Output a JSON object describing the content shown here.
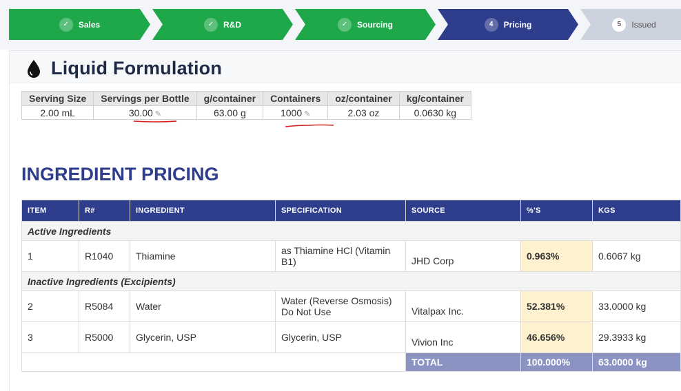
{
  "stepper": {
    "steps": [
      {
        "label": "Sales",
        "state": "done",
        "marker": "✓"
      },
      {
        "label": "R&D",
        "state": "done",
        "marker": "✓"
      },
      {
        "label": "Sourcing",
        "state": "done",
        "marker": "✓"
      },
      {
        "label": "Pricing",
        "state": "current",
        "marker": "4"
      },
      {
        "label": "Issued",
        "state": "todo",
        "marker": "5"
      }
    ],
    "colors": {
      "done": "#1ea84a",
      "current": "#2e3d8c",
      "todo": "#cdd3de"
    }
  },
  "formulation": {
    "title": "Liquid Formulation",
    "icon": "water-drop-icon",
    "summary": {
      "headers": [
        "Serving Size",
        "Servings per Bottle",
        "g/container",
        "Containers",
        "oz/container",
        "kg/container"
      ],
      "values": [
        "2.00 mL",
        "30.00",
        "63.00 g",
        "1000",
        "2.03 oz",
        "0.0630 kg"
      ]
    }
  },
  "pricing": {
    "title": "INGREDIENT PRICING",
    "headers": [
      "ITEM",
      "R#",
      "INGREDIENT",
      "SPECIFICATION",
      "SOURCE",
      "%'S",
      "KGS"
    ],
    "groups": [
      {
        "label": "Active Ingredients",
        "rows": [
          {
            "item": "1",
            "r": "R1040",
            "ingredient": "Thiamine",
            "spec": "as Thiamine HCl (Vitamin B1)",
            "source": "JHD Corp",
            "pct": "0.963%",
            "kgs": "0.6067 kg"
          }
        ]
      },
      {
        "label": "Inactive Ingredients (Excipients)",
        "rows": [
          {
            "item": "2",
            "r": "R5084",
            "ingredient": "Water",
            "spec": "Water (Reverse Osmosis) Do Not Use",
            "source": "Vitalpax Inc.",
            "pct": "52.381%",
            "kgs": "33.0000 kg"
          },
          {
            "item": "3",
            "r": "R5000",
            "ingredient": "Glycerin, USP",
            "spec": "Glycerin, USP",
            "source": "Vivion Inc",
            "pct": "46.656%",
            "kgs": "29.3933 kg"
          }
        ]
      }
    ],
    "total": {
      "label": "TOTAL",
      "pct": "100.000%",
      "kgs": "63.0000 kg"
    }
  }
}
